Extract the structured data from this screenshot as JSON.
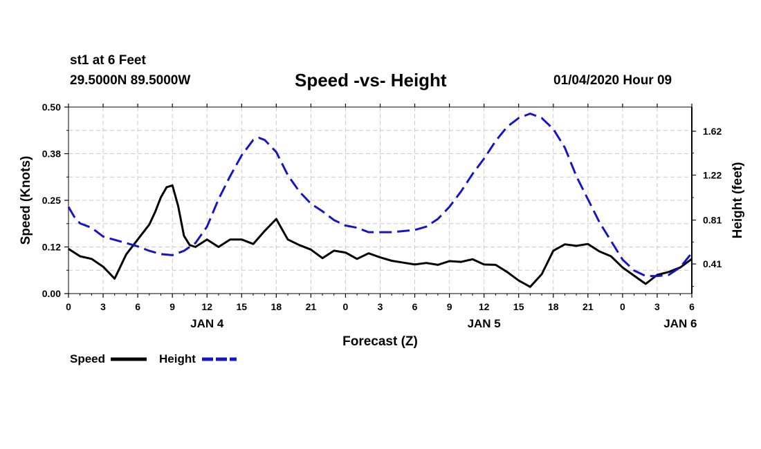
{
  "header": {
    "station": "st1 at 6 Feet",
    "coords": "29.5000N 89.5000W",
    "title": "Speed -vs- Height",
    "datetime": "01/04/2020 Hour 09"
  },
  "colors": {
    "speed": "#000000",
    "height": "#1515c8",
    "grid": "#c8c8c8"
  },
  "chart_data": {
    "type": "line",
    "title": "Speed -vs- Height",
    "xlabel": "Forecast (Z)",
    "ylabel": "Speed (Knots)",
    "y2label": "Height (feet)",
    "xlim": [
      0,
      54
    ],
    "ylim": [
      0,
      0.5
    ],
    "y2lim": [
      0.14,
      1.84
    ],
    "x_ticks": [
      0,
      3,
      6,
      9,
      12,
      15,
      18,
      21,
      24,
      27,
      30,
      33,
      36,
      39,
      42,
      45,
      48,
      51,
      54
    ],
    "x_tick_labels": [
      "0",
      "3",
      "6",
      "9",
      "12",
      "15",
      "18",
      "21",
      "0",
      "3",
      "6",
      "9",
      "12",
      "15",
      "18",
      "21",
      "0",
      "3",
      "6"
    ],
    "day_labels": [
      {
        "x": 12,
        "label": "JAN 4"
      },
      {
        "x": 36,
        "label": "JAN 5"
      },
      {
        "x": 53,
        "label": "JAN 6"
      }
    ],
    "y_ticks": [
      0.0,
      0.125,
      0.25,
      0.375,
      0.5
    ],
    "y_tick_labels": [
      "0.00",
      "0.12",
      "0.25",
      "0.38",
      "0.50"
    ],
    "y2_ticks": [
      0.41,
      0.81,
      1.22,
      1.62
    ],
    "y2_tick_labels": [
      "0.41",
      "0.81",
      "1.22",
      "1.62"
    ],
    "legend": "bottom-left",
    "series": [
      {
        "name": "Speed",
        "axis": "left",
        "style": "solid",
        "x": [
          0,
          1,
          2,
          3,
          4,
          5,
          6,
          7,
          7.5,
          8,
          8.5,
          9,
          9.5,
          10,
          10.5,
          11,
          12,
          13,
          14,
          15,
          16,
          17,
          18,
          19,
          20,
          21,
          22,
          23,
          24,
          25,
          26,
          27,
          28,
          29,
          30,
          31,
          32,
          33,
          34,
          35,
          36,
          37,
          38,
          39,
          40,
          41,
          42,
          43,
          44,
          45,
          46,
          47,
          48,
          49,
          50,
          51,
          52,
          53,
          54
        ],
        "y": [
          0.12,
          0.1,
          0.093,
          0.072,
          0.04,
          0.105,
          0.145,
          0.185,
          0.218,
          0.258,
          0.285,
          0.29,
          0.235,
          0.155,
          0.13,
          0.125,
          0.145,
          0.125,
          0.145,
          0.145,
          0.133,
          0.168,
          0.2,
          0.145,
          0.13,
          0.118,
          0.095,
          0.115,
          0.11,
          0.093,
          0.108,
          0.097,
          0.088,
          0.083,
          0.078,
          0.082,
          0.077,
          0.087,
          0.085,
          0.092,
          0.078,
          0.077,
          0.058,
          0.035,
          0.018,
          0.052,
          0.115,
          0.132,
          0.128,
          0.133,
          0.113,
          0.1,
          0.07,
          0.048,
          0.026,
          0.05,
          0.058,
          0.07,
          0.093
        ]
      },
      {
        "name": "Height",
        "axis": "right",
        "style": "dashed",
        "x": [
          0,
          0.5,
          1,
          2,
          3,
          4,
          5,
          6,
          7,
          8,
          9,
          10,
          11,
          12,
          13,
          14,
          15,
          16,
          16.5,
          17,
          18,
          19,
          20,
          21,
          22,
          23,
          24,
          25,
          26,
          27,
          28,
          29,
          30,
          31,
          32,
          33,
          34,
          35,
          36,
          37,
          38,
          39,
          40,
          41,
          42,
          43,
          44,
          45,
          46,
          47,
          48,
          49,
          50,
          51,
          52,
          53,
          54
        ],
        "y": [
          0.93,
          0.84,
          0.78,
          0.74,
          0.66,
          0.63,
          0.6,
          0.57,
          0.53,
          0.5,
          0.49,
          0.53,
          0.6,
          0.75,
          1.0,
          1.21,
          1.4,
          1.54,
          1.56,
          1.54,
          1.43,
          1.22,
          1.07,
          0.96,
          0.89,
          0.81,
          0.76,
          0.74,
          0.7,
          0.7,
          0.7,
          0.71,
          0.72,
          0.75,
          0.82,
          0.93,
          1.07,
          1.23,
          1.37,
          1.53,
          1.66,
          1.74,
          1.78,
          1.74,
          1.64,
          1.47,
          1.21,
          1.0,
          0.79,
          0.62,
          0.45,
          0.35,
          0.3,
          0.3,
          0.31,
          0.38,
          0.51
        ]
      }
    ]
  }
}
